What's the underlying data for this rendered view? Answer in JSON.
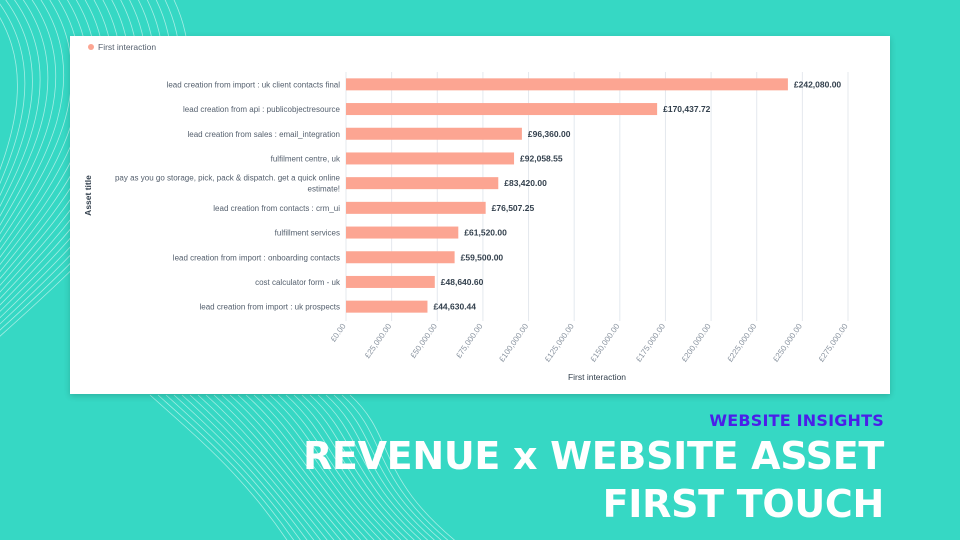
{
  "colors": {
    "background": "#36d8c4",
    "bar": "#fca592",
    "eyebrow": "#4b1fe8",
    "headline": "#ffffff"
  },
  "slide": {
    "eyebrow": "WEBSITE INSIGHTS",
    "headline_line1": "REVENUE x WEBSITE ASSET",
    "headline_line2": "FIRST TOUCH"
  },
  "chart_data": {
    "type": "bar",
    "orientation": "horizontal",
    "legend": {
      "entries": [
        "First interaction"
      ],
      "position": "top-left"
    },
    "xlabel": "First interaction",
    "ylabel": "Asset title",
    "xlim": [
      0,
      275000
    ],
    "x_ticks": [
      "£0.00",
      "£25,000.00",
      "£50,000.00",
      "£75,000.00",
      "£100,000.00",
      "£125,000.00",
      "£150,000.00",
      "£175,000.00",
      "£200,000.00",
      "£225,000.00",
      "£250,000.00",
      "£275,000.00"
    ],
    "grid": true,
    "categories": [
      [
        "lead creation from import : uk client contacts final"
      ],
      [
        "lead creation from api : publicobjectresource"
      ],
      [
        "lead creation from sales : email_integration"
      ],
      [
        "fulfilment centre, uk"
      ],
      [
        "pay as you go storage, pick, pack & dispatch. get a quick online",
        "estimate!"
      ],
      [
        "lead creation from contacts : crm_ui"
      ],
      [
        "fulfillment services"
      ],
      [
        "lead creation from import : onboarding contacts"
      ],
      [
        "cost calculator form - uk"
      ],
      [
        "lead creation from import : uk prospects"
      ]
    ],
    "series": [
      {
        "name": "First interaction",
        "values": [
          242080.0,
          170437.72,
          96360.0,
          92058.55,
          83420.0,
          76507.25,
          61520.0,
          59500.0,
          48640.6,
          44630.44
        ],
        "labels": [
          "£242,080.00",
          "£170,437.72",
          "£96,360.00",
          "£92,058.55",
          "£83,420.00",
          "£76,507.25",
          "£61,520.00",
          "£59,500.00",
          "£48,640.60",
          "£44,630.44"
        ]
      }
    ]
  }
}
